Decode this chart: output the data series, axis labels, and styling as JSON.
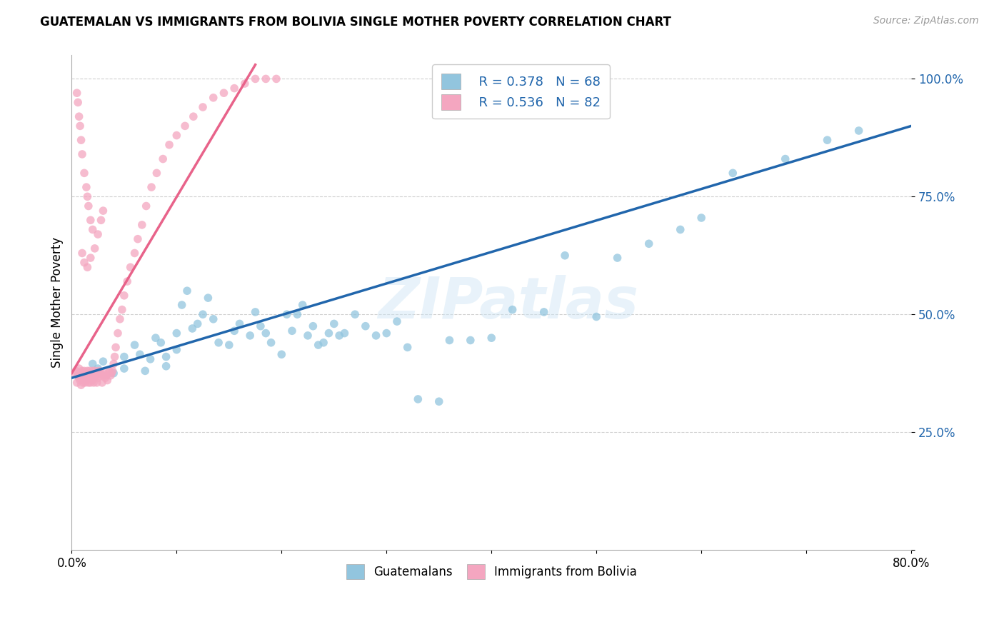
{
  "title": "GUATEMALAN VS IMMIGRANTS FROM BOLIVIA SINGLE MOTHER POVERTY CORRELATION CHART",
  "source": "Source: ZipAtlas.com",
  "ylabel": "Single Mother Poverty",
  "yticks": [
    0.0,
    0.25,
    0.5,
    0.75,
    1.0
  ],
  "ytick_labels": [
    "",
    "25.0%",
    "50.0%",
    "75.0%",
    "100.0%"
  ],
  "xlim": [
    0.0,
    0.8
  ],
  "ylim": [
    0.0,
    1.05
  ],
  "legend_blue_R": "R = 0.378",
  "legend_blue_N": "N = 68",
  "legend_pink_R": "R = 0.536",
  "legend_pink_N": "N = 82",
  "blue_color": "#92c5de",
  "pink_color": "#f4a6c0",
  "blue_line_color": "#2166ac",
  "pink_line_color": "#e8638a",
  "watermark": "ZIPatlas",
  "legend_label_blue": "Guatemalans",
  "legend_label_pink": "Immigrants from Bolivia",
  "blue_trend_x": [
    0.0,
    0.8
  ],
  "blue_trend_y": [
    0.365,
    0.9
  ],
  "pink_trend_x": [
    0.0,
    0.175
  ],
  "pink_trend_y": [
    0.375,
    1.03
  ],
  "blue_scatter_x": [
    0.02,
    0.025,
    0.03,
    0.04,
    0.05,
    0.05,
    0.06,
    0.065,
    0.07,
    0.075,
    0.08,
    0.085,
    0.09,
    0.09,
    0.1,
    0.1,
    0.105,
    0.11,
    0.115,
    0.12,
    0.125,
    0.13,
    0.135,
    0.14,
    0.15,
    0.155,
    0.16,
    0.17,
    0.175,
    0.18,
    0.185,
    0.19,
    0.2,
    0.205,
    0.21,
    0.215,
    0.22,
    0.225,
    0.23,
    0.235,
    0.24,
    0.245,
    0.25,
    0.255,
    0.26,
    0.27,
    0.28,
    0.29,
    0.3,
    0.31,
    0.32,
    0.33,
    0.35,
    0.36,
    0.38,
    0.4,
    0.42,
    0.45,
    0.47,
    0.5,
    0.52,
    0.55,
    0.58,
    0.6,
    0.63,
    0.68,
    0.72,
    0.75
  ],
  "blue_scatter_y": [
    0.395,
    0.385,
    0.4,
    0.375,
    0.385,
    0.41,
    0.435,
    0.415,
    0.38,
    0.405,
    0.45,
    0.44,
    0.41,
    0.39,
    0.46,
    0.425,
    0.52,
    0.55,
    0.47,
    0.48,
    0.5,
    0.535,
    0.49,
    0.44,
    0.435,
    0.465,
    0.48,
    0.455,
    0.505,
    0.475,
    0.46,
    0.44,
    0.415,
    0.5,
    0.465,
    0.5,
    0.52,
    0.455,
    0.475,
    0.435,
    0.44,
    0.46,
    0.48,
    0.455,
    0.46,
    0.5,
    0.475,
    0.455,
    0.46,
    0.485,
    0.43,
    0.32,
    0.315,
    0.445,
    0.445,
    0.45,
    0.51,
    0.505,
    0.625,
    0.495,
    0.62,
    0.65,
    0.68,
    0.705,
    0.8,
    0.83,
    0.87,
    0.89
  ],
  "pink_scatter_x": [
    0.003,
    0.004,
    0.005,
    0.006,
    0.007,
    0.007,
    0.008,
    0.008,
    0.009,
    0.009,
    0.01,
    0.01,
    0.011,
    0.011,
    0.012,
    0.012,
    0.013,
    0.013,
    0.014,
    0.014,
    0.015,
    0.015,
    0.016,
    0.016,
    0.017,
    0.017,
    0.018,
    0.018,
    0.019,
    0.019,
    0.02,
    0.02,
    0.021,
    0.021,
    0.022,
    0.022,
    0.023,
    0.024,
    0.024,
    0.025,
    0.026,
    0.027,
    0.028,
    0.029,
    0.03,
    0.031,
    0.032,
    0.033,
    0.034,
    0.035,
    0.036,
    0.037,
    0.038,
    0.039,
    0.04,
    0.041,
    0.042,
    0.044,
    0.046,
    0.048,
    0.05,
    0.053,
    0.056,
    0.06,
    0.063,
    0.067,
    0.071,
    0.076,
    0.081,
    0.087,
    0.093,
    0.1,
    0.108,
    0.116,
    0.125,
    0.135,
    0.145,
    0.155,
    0.165,
    0.175,
    0.185,
    0.195
  ],
  "pink_scatter_y": [
    0.375,
    0.38,
    0.355,
    0.37,
    0.365,
    0.385,
    0.36,
    0.375,
    0.37,
    0.35,
    0.365,
    0.38,
    0.355,
    0.375,
    0.36,
    0.38,
    0.37,
    0.355,
    0.375,
    0.36,
    0.37,
    0.38,
    0.355,
    0.375,
    0.365,
    0.38,
    0.37,
    0.355,
    0.365,
    0.375,
    0.36,
    0.38,
    0.375,
    0.355,
    0.365,
    0.38,
    0.37,
    0.375,
    0.355,
    0.365,
    0.38,
    0.37,
    0.375,
    0.355,
    0.37,
    0.375,
    0.365,
    0.37,
    0.36,
    0.375,
    0.38,
    0.37,
    0.375,
    0.38,
    0.395,
    0.41,
    0.43,
    0.46,
    0.49,
    0.51,
    0.54,
    0.57,
    0.6,
    0.63,
    0.66,
    0.69,
    0.73,
    0.77,
    0.8,
    0.83,
    0.86,
    0.88,
    0.9,
    0.92,
    0.94,
    0.96,
    0.97,
    0.98,
    0.99,
    1.0,
    1.0,
    1.0
  ],
  "pink_extra_high_x": [
    0.005,
    0.006,
    0.007,
    0.008,
    0.009,
    0.01,
    0.012,
    0.014,
    0.015,
    0.016,
    0.018,
    0.02
  ],
  "pink_extra_high_y": [
    0.97,
    0.95,
    0.92,
    0.9,
    0.87,
    0.84,
    0.8,
    0.77,
    0.75,
    0.73,
    0.7,
    0.68
  ],
  "pink_medium_x": [
    0.01,
    0.012,
    0.015,
    0.018,
    0.022,
    0.025,
    0.028,
    0.03
  ],
  "pink_medium_y": [
    0.63,
    0.61,
    0.6,
    0.62,
    0.64,
    0.67,
    0.7,
    0.72
  ]
}
